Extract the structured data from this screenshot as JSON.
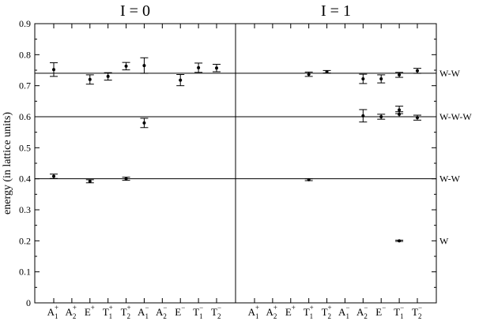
{
  "chart_data": [
    {
      "type": "scatter",
      "title": "I = 0",
      "y_label": "energy (in lattice units)",
      "ylim": [
        0,
        0.9
      ],
      "yticks": [
        0,
        0.1,
        0.2,
        0.3,
        0.4,
        0.5,
        0.6,
        0.7,
        0.8,
        0.9
      ],
      "y_axis_side": "left",
      "categories": [
        {
          "letter": "A",
          "sub": "1",
          "sup": "+",
          "values": [
            0.752,
            0.408
          ],
          "errors": [
            0.022,
            0.007
          ]
        },
        {
          "letter": "A",
          "sub": "2",
          "sup": "+",
          "values": [],
          "errors": []
        },
        {
          "letter": "E",
          "sub": "",
          "sup": "+",
          "values": [
            0.72,
            0.392
          ],
          "errors": [
            0.015,
            0.005
          ]
        },
        {
          "letter": "T",
          "sub": "1",
          "sup": "+",
          "values": [
            0.73
          ],
          "errors": [
            0.012
          ]
        },
        {
          "letter": "T",
          "sub": "2",
          "sup": "+",
          "values": [
            0.763,
            0.4
          ],
          "errors": [
            0.012,
            0.005
          ]
        },
        {
          "letter": "A",
          "sub": "1",
          "sup": "−",
          "values": [
            0.765,
            0.58
          ],
          "errors": [
            0.025,
            0.015
          ]
        },
        {
          "letter": "A",
          "sub": "2",
          "sup": "−",
          "values": [],
          "errors": []
        },
        {
          "letter": "E",
          "sub": "",
          "sup": "−",
          "values": [
            0.718
          ],
          "errors": [
            0.018
          ]
        },
        {
          "letter": "T",
          "sub": "1",
          "sup": "−",
          "values": [
            0.758
          ],
          "errors": [
            0.015
          ]
        },
        {
          "letter": "T",
          "sub": "2",
          "sup": "−",
          "values": [
            0.757
          ],
          "errors": [
            0.012
          ]
        }
      ]
    },
    {
      "type": "scatter",
      "title": "I = 1",
      "ylim": [
        0,
        0.9
      ],
      "yticks": [
        0,
        0.1,
        0.2,
        0.3,
        0.4,
        0.5,
        0.6,
        0.7,
        0.8,
        0.9
      ],
      "y_axis_side": "right",
      "reference_lines": [
        {
          "value": 0.74,
          "label": "W-W",
          "line": true
        },
        {
          "value": 0.6,
          "label": "W-W-W",
          "line": true
        },
        {
          "value": 0.4,
          "label": "W-W",
          "line": true
        },
        {
          "value": 0.2,
          "label": "W",
          "line": false
        }
      ],
      "categories": [
        {
          "letter": "A",
          "sub": "1",
          "sup": "+",
          "values": [],
          "errors": []
        },
        {
          "letter": "A",
          "sub": "2",
          "sup": "+",
          "values": [],
          "errors": []
        },
        {
          "letter": "E",
          "sub": "",
          "sup": "+",
          "values": [],
          "errors": []
        },
        {
          "letter": "T",
          "sub": "1",
          "sup": "+",
          "values": [
            0.737,
            0.397
          ],
          "errors": [
            0.007,
            0.003
          ]
        },
        {
          "letter": "T",
          "sub": "2",
          "sup": "+",
          "values": [
            0.745
          ],
          "errors": [
            0.004
          ]
        },
        {
          "letter": "A",
          "sub": "1",
          "sup": "−",
          "values": [],
          "errors": []
        },
        {
          "letter": "A",
          "sub": "2",
          "sup": "−",
          "values": [
            0.722,
            0.603
          ],
          "errors": [
            0.015,
            0.02
          ]
        },
        {
          "letter": "E",
          "sub": "",
          "sup": "−",
          "values": [
            0.722,
            0.6
          ],
          "errors": [
            0.013,
            0.008
          ]
        },
        {
          "letter": "T",
          "sub": "1",
          "sup": "−",
          "values": [
            0.735,
            0.622,
            0.608,
            0.2
          ],
          "errors": [
            0.008,
            0.012,
            0.008,
            0.002
          ]
        },
        {
          "letter": "T",
          "sub": "2",
          "sup": "−",
          "values": [
            0.748,
            0.597
          ],
          "errors": [
            0.008,
            0.008
          ]
        }
      ]
    }
  ]
}
